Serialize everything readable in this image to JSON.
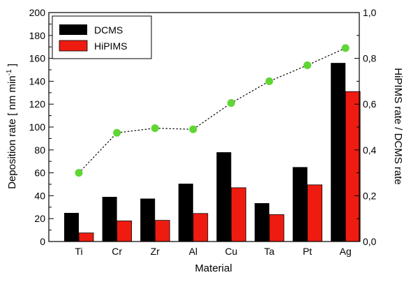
{
  "chart_data": {
    "type": "bar",
    "categories": [
      "Ti",
      "Cr",
      "Zr",
      "Al",
      "Cu",
      "Ta",
      "Pt",
      "Ag"
    ],
    "xlabel": "Material",
    "ylabel": "Deposition rate [ nm min",
    "ylabel_sup": "-1",
    "ylabel_end": " ]",
    "ylim": [
      0,
      200
    ],
    "yticks": [
      "0",
      "20",
      "40",
      "60",
      "80",
      "100",
      "120",
      "140",
      "160",
      "180",
      "200"
    ],
    "y2label": "HiPIMS rate / DCMS rate",
    "y2lim": [
      0,
      1.0
    ],
    "y2ticks": [
      "0,0",
      "0,2",
      "0,4",
      "0,6",
      "0,8",
      "1,0"
    ],
    "legend_position": "top-left",
    "series": [
      {
        "name": "DCMS",
        "axis": "left",
        "color": "#000000",
        "values": [
          25,
          39,
          37.5,
          50.5,
          78,
          33.5,
          65,
          156
        ]
      },
      {
        "name": "HiPIMS",
        "axis": "left",
        "color": "#ee1c10",
        "values": [
          7.5,
          18,
          18.5,
          24.5,
          47,
          23.5,
          49.5,
          131
        ]
      },
      {
        "axis": "right",
        "type": "line",
        "style": "dotted",
        "marker": "circle",
        "color": "#5fd633",
        "values": [
          0.3,
          0.475,
          0.495,
          0.49,
          0.605,
          0.7,
          0.77,
          0.845
        ]
      }
    ]
  }
}
